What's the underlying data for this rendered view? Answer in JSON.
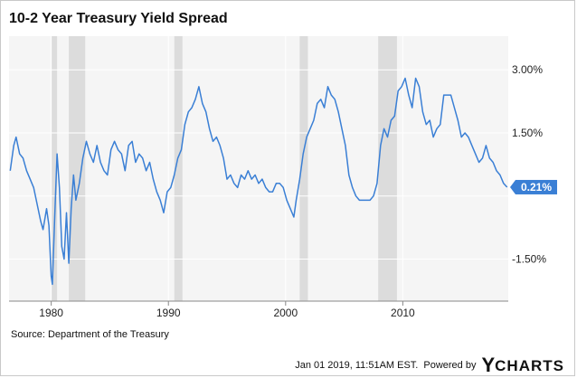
{
  "title": "10-2 Year Treasury Yield Spread",
  "source": "Source: Department of the Treasury",
  "footer": {
    "timestamp": "Jan 01 2019, 11:51AM EST.",
    "powered_by": "Powered by",
    "brand_y": "Y",
    "brand_rest": "CHARTS"
  },
  "colors": {
    "line": "#3a7fd5",
    "plot_bg": "#f5f5f5",
    "recession": "#dcdcdc",
    "label_bg": "#3a7fd5",
    "label_text": "#ffffff"
  },
  "chart_data": {
    "type": "line",
    "title": "10-2 Year Treasury Yield Spread",
    "xlim": [
      1976.4,
      2019.0
    ],
    "ylim": [
      -2.5,
      3.8
    ],
    "x_ticks": [
      1980,
      1990,
      2000,
      2010
    ],
    "x_tick_labels": [
      "1980",
      "1990",
      "2000",
      "2010"
    ],
    "y_ticks": [
      -1.5,
      0,
      1.5,
      3.0
    ],
    "y_tick_labels": [
      "-1.50%",
      "",
      "1.50%",
      "3.00%"
    ],
    "grid": true,
    "last_value_label": "0.21%",
    "last_value": 0.21,
    "recessions": [
      [
        1980.0,
        1980.5
      ],
      [
        1981.5,
        1982.9
      ],
      [
        1990.5,
        1991.2
      ],
      [
        2001.2,
        2001.9
      ],
      [
        2007.9,
        2009.5
      ]
    ],
    "series": [
      {
        "values": [
          [
            1976.5,
            0.6
          ],
          [
            1976.8,
            1.2
          ],
          [
            1977.0,
            1.4
          ],
          [
            1977.3,
            1.0
          ],
          [
            1977.6,
            0.9
          ],
          [
            1977.9,
            0.6
          ],
          [
            1978.2,
            0.4
          ],
          [
            1978.5,
            0.2
          ],
          [
            1978.8,
            -0.2
          ],
          [
            1979.1,
            -0.6
          ],
          [
            1979.3,
            -0.8
          ],
          [
            1979.6,
            -0.3
          ],
          [
            1979.8,
            -0.7
          ],
          [
            1980.0,
            -1.9
          ],
          [
            1980.1,
            -2.1
          ],
          [
            1980.3,
            -0.5
          ],
          [
            1980.5,
            1.0
          ],
          [
            1980.7,
            0.2
          ],
          [
            1980.9,
            -1.2
          ],
          [
            1981.1,
            -1.5
          ],
          [
            1981.3,
            -0.4
          ],
          [
            1981.5,
            -1.6
          ],
          [
            1981.7,
            -0.3
          ],
          [
            1981.9,
            0.5
          ],
          [
            1982.1,
            -0.1
          ],
          [
            1982.4,
            0.3
          ],
          [
            1982.7,
            0.9
          ],
          [
            1983.0,
            1.3
          ],
          [
            1983.3,
            1.0
          ],
          [
            1983.6,
            0.8
          ],
          [
            1983.9,
            1.2
          ],
          [
            1984.2,
            0.8
          ],
          [
            1984.5,
            0.6
          ],
          [
            1984.8,
            0.5
          ],
          [
            1985.1,
            1.1
          ],
          [
            1985.4,
            1.3
          ],
          [
            1985.7,
            1.1
          ],
          [
            1986.0,
            1.0
          ],
          [
            1986.3,
            0.6
          ],
          [
            1986.6,
            1.2
          ],
          [
            1986.9,
            1.3
          ],
          [
            1987.2,
            0.8
          ],
          [
            1987.5,
            1.0
          ],
          [
            1987.8,
            0.9
          ],
          [
            1988.1,
            0.6
          ],
          [
            1988.4,
            0.8
          ],
          [
            1988.7,
            0.4
          ],
          [
            1989.0,
            0.1
          ],
          [
            1989.3,
            -0.1
          ],
          [
            1989.6,
            -0.4
          ],
          [
            1989.9,
            0.1
          ],
          [
            1990.2,
            0.2
          ],
          [
            1990.5,
            0.5
          ],
          [
            1990.8,
            0.9
          ],
          [
            1991.1,
            1.1
          ],
          [
            1991.4,
            1.7
          ],
          [
            1991.7,
            2.0
          ],
          [
            1992.0,
            2.1
          ],
          [
            1992.3,
            2.3
          ],
          [
            1992.6,
            2.6
          ],
          [
            1992.9,
            2.2
          ],
          [
            1993.2,
            2.0
          ],
          [
            1993.5,
            1.6
          ],
          [
            1993.8,
            1.3
          ],
          [
            1994.1,
            1.4
          ],
          [
            1994.4,
            1.2
          ],
          [
            1994.7,
            0.9
          ],
          [
            1995.0,
            0.4
          ],
          [
            1995.3,
            0.5
          ],
          [
            1995.6,
            0.3
          ],
          [
            1995.9,
            0.2
          ],
          [
            1996.2,
            0.5
          ],
          [
            1996.5,
            0.4
          ],
          [
            1996.8,
            0.6
          ],
          [
            1997.1,
            0.4
          ],
          [
            1997.4,
            0.5
          ],
          [
            1997.7,
            0.3
          ],
          [
            1998.0,
            0.4
          ],
          [
            1998.3,
            0.2
          ],
          [
            1998.6,
            0.1
          ],
          [
            1998.9,
            0.1
          ],
          [
            1999.2,
            0.3
          ],
          [
            1999.5,
            0.3
          ],
          [
            1999.8,
            0.2
          ],
          [
            2000.1,
            -0.1
          ],
          [
            2000.4,
            -0.3
          ],
          [
            2000.7,
            -0.5
          ],
          [
            2000.9,
            -0.1
          ],
          [
            2001.2,
            0.4
          ],
          [
            2001.5,
            1.0
          ],
          [
            2001.8,
            1.4
          ],
          [
            2002.1,
            1.6
          ],
          [
            2002.4,
            1.8
          ],
          [
            2002.7,
            2.2
          ],
          [
            2003.0,
            2.3
          ],
          [
            2003.3,
            2.1
          ],
          [
            2003.6,
            2.6
          ],
          [
            2003.9,
            2.4
          ],
          [
            2004.2,
            2.3
          ],
          [
            2004.5,
            2.0
          ],
          [
            2004.8,
            1.6
          ],
          [
            2005.1,
            1.2
          ],
          [
            2005.4,
            0.5
          ],
          [
            2005.7,
            0.2
          ],
          [
            2006.0,
            0.0
          ],
          [
            2006.3,
            -0.1
          ],
          [
            2006.6,
            -0.1
          ],
          [
            2006.9,
            -0.1
          ],
          [
            2007.2,
            -0.1
          ],
          [
            2007.5,
            0.0
          ],
          [
            2007.8,
            0.3
          ],
          [
            2008.1,
            1.2
          ],
          [
            2008.4,
            1.6
          ],
          [
            2008.7,
            1.4
          ],
          [
            2009.0,
            1.8
          ],
          [
            2009.3,
            1.9
          ],
          [
            2009.6,
            2.5
          ],
          [
            2009.9,
            2.6
          ],
          [
            2010.2,
            2.8
          ],
          [
            2010.5,
            2.4
          ],
          [
            2010.8,
            2.1
          ],
          [
            2011.1,
            2.8
          ],
          [
            2011.4,
            2.6
          ],
          [
            2011.7,
            2.0
          ],
          [
            2012.0,
            1.7
          ],
          [
            2012.3,
            1.8
          ],
          [
            2012.6,
            1.4
          ],
          [
            2012.9,
            1.6
          ],
          [
            2013.2,
            1.7
          ],
          [
            2013.5,
            2.4
          ],
          [
            2013.8,
            2.4
          ],
          [
            2014.1,
            2.4
          ],
          [
            2014.4,
            2.1
          ],
          [
            2014.7,
            1.8
          ],
          [
            2015.0,
            1.4
          ],
          [
            2015.3,
            1.5
          ],
          [
            2015.6,
            1.4
          ],
          [
            2015.9,
            1.2
          ],
          [
            2016.2,
            1.0
          ],
          [
            2016.5,
            0.8
          ],
          [
            2016.8,
            0.9
          ],
          [
            2017.1,
            1.2
          ],
          [
            2017.4,
            0.9
          ],
          [
            2017.7,
            0.8
          ],
          [
            2018.0,
            0.6
          ],
          [
            2018.3,
            0.5
          ],
          [
            2018.6,
            0.3
          ],
          [
            2018.9,
            0.21
          ]
        ]
      }
    ]
  }
}
